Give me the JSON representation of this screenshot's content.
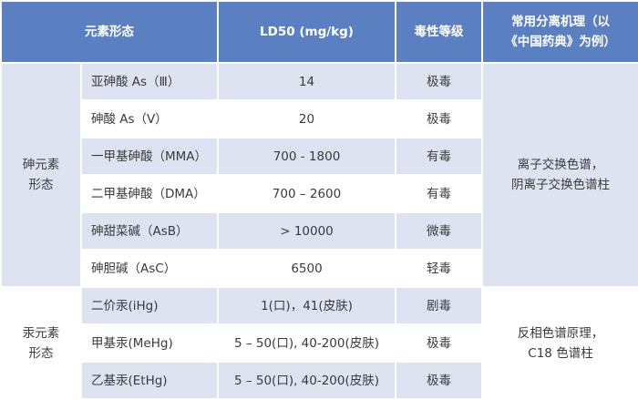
{
  "table": {
    "header": [
      "元素形态",
      "LD50 (mg/kg)",
      "毒性等级",
      [
        "常用分离机理（以",
        "《中国药典》为例）"
      ]
    ],
    "groups": [
      {
        "label": [
          "砷元素",
          "形态"
        ],
        "method": [
          "离子交换色谱，",
          "阴离子交换色谱柱"
        ],
        "rows": [
          [
            "亚砷酸 As（Ⅲ）",
            "14",
            "极毒"
          ],
          [
            "砷酸 As（Ⅴ）",
            "20",
            "极毒"
          ],
          [
            "一甲基砷酸（MMA）",
            "700 - 1800",
            "有毒"
          ],
          [
            "二甲基砷酸（DMA）",
            "700 – 2600",
            "有毒"
          ],
          [
            "砷甜菜碱（AsB）",
            "> 10000",
            "微毒"
          ],
          [
            "砷胆碱（AsC）",
            "6500",
            "轻毒"
          ]
        ]
      },
      {
        "label": [
          "汞元素",
          "形态"
        ],
        "method": [
          "反相色谱原理，",
          "C18 色谱柱"
        ],
        "rows": [
          [
            "二价汞(iHg)",
            "1(口)，41(皮肤)",
            "剧毒"
          ],
          [
            "甲基汞(MeHg)",
            "5 – 50(口), 40-200(皮肤)",
            "极毒"
          ],
          [
            "乙基汞(EtHg)",
            "5 – 50(口), 40-200(皮肤)",
            "极毒"
          ]
        ]
      }
    ]
  }
}
